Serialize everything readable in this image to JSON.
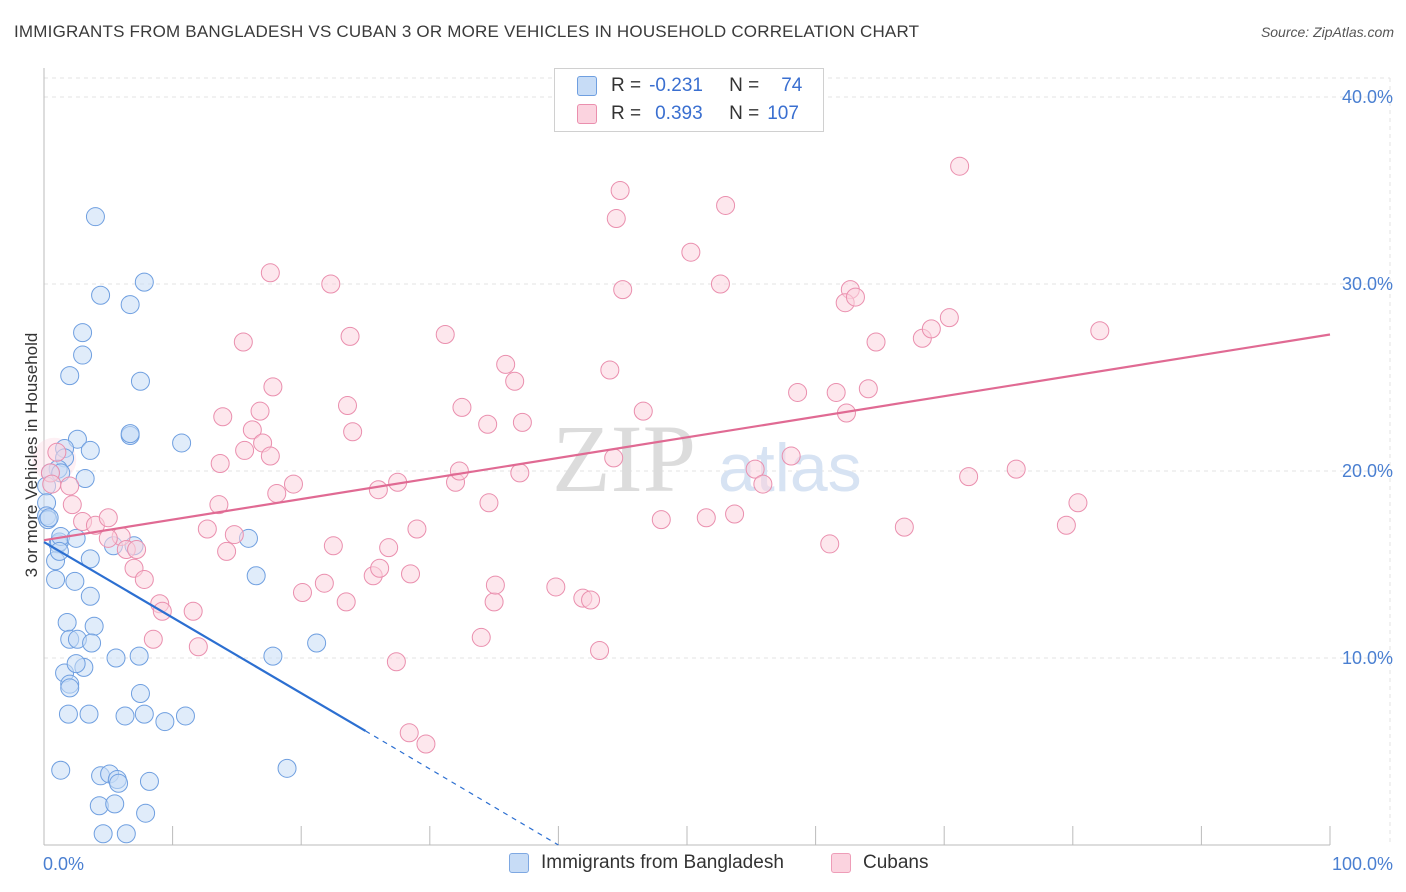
{
  "title": "IMMIGRANTS FROM BANGLADESH VS CUBAN 3 OR MORE VEHICLES IN HOUSEHOLD CORRELATION CHART",
  "source": "Source: ZipAtlas.com",
  "watermark": {
    "zip": "ZIP",
    "atlas": "atlas"
  },
  "legend": {
    "rows": [
      {
        "r_label": "R =",
        "r_value": "-0.231",
        "n_label": "N =",
        "n_value": "74",
        "color": "#a9c8f0",
        "border": "#6f9fe0"
      },
      {
        "r_label": "R =",
        "r_value": "0.393",
        "n_label": "N =",
        "n_value": "107",
        "color": "#f7bfd0",
        "border": "#ea8fae"
      }
    ]
  },
  "bottom_legend": {
    "items": [
      {
        "label": "Immigrants from Bangladesh",
        "color": "#c7dcf6",
        "border": "#7ea8e2"
      },
      {
        "label": "Cubans",
        "color": "#fbd3df",
        "border": "#ee9db8"
      }
    ]
  },
  "chart_data": {
    "type": "scatter",
    "title": "IMMIGRANTS FROM BANGLADESH VS CUBAN 3 OR MORE VEHICLES IN HOUSEHOLD CORRELATION CHART",
    "xlabel": "",
    "ylabel": "3 or more Vehicles in Household",
    "xlim": [
      0,
      100
    ],
    "ylim": [
      0,
      40
    ],
    "x_ticks": [
      0,
      100
    ],
    "x_tick_labels": [
      "0.0%",
      "100.0%"
    ],
    "y_ticks": [
      10,
      20,
      30,
      40
    ],
    "y_tick_labels": [
      "10.0%",
      "20.0%",
      "30.0%",
      "40.0%"
    ],
    "grid": true,
    "legend_position": "top-center",
    "series": [
      {
        "name": "Immigrants from Bangladesh",
        "color": "#6f9fe0",
        "fill": "#c7dcf6",
        "trend": {
          "x": [
            0,
            25
          ],
          "y": [
            16.2,
            6.1
          ],
          "dashed_to": [
            40,
            0.0
          ],
          "color": "#2c6fd1"
        },
        "points": [
          [
            4,
            33.6
          ],
          [
            4.4,
            29.4
          ],
          [
            6.7,
            28.9
          ],
          [
            7.8,
            30.1
          ],
          [
            3,
            27.4
          ],
          [
            3,
            26.2
          ],
          [
            2,
            25.1
          ],
          [
            7.5,
            24.8
          ],
          [
            10.7,
            21.5
          ],
          [
            6.7,
            21.9
          ],
          [
            6.7,
            22
          ],
          [
            2.6,
            21.7
          ],
          [
            1.6,
            21.2
          ],
          [
            1.6,
            20.7
          ],
          [
            3.6,
            21.1
          ],
          [
            1.1,
            20.1
          ],
          [
            0.5,
            19.9
          ],
          [
            1.3,
            19.9
          ],
          [
            0.2,
            19.2
          ],
          [
            0.2,
            18.3
          ],
          [
            3.2,
            19.6
          ],
          [
            0.2,
            17.6
          ],
          [
            0.3,
            17.4
          ],
          [
            0.4,
            17.5
          ],
          [
            1.1,
            16.1
          ],
          [
            1.2,
            16.2
          ],
          [
            1.3,
            16.5
          ],
          [
            2.5,
            16.4
          ],
          [
            5.4,
            16
          ],
          [
            7,
            16
          ],
          [
            0.9,
            15.2
          ],
          [
            1.2,
            15.7
          ],
          [
            3.6,
            15.3
          ],
          [
            15.9,
            16.4
          ],
          [
            0.9,
            14.2
          ],
          [
            2.4,
            14.1
          ],
          [
            3.6,
            13.3
          ],
          [
            16.5,
            14.4
          ],
          [
            1.8,
            11.9
          ],
          [
            3.9,
            11.7
          ],
          [
            2,
            11
          ],
          [
            2.6,
            11
          ],
          [
            3.7,
            10.8
          ],
          [
            7.4,
            10.1
          ],
          [
            1.6,
            9.2
          ],
          [
            3.1,
            9.5
          ],
          [
            2.5,
            9.7
          ],
          [
            5.6,
            10
          ],
          [
            2,
            8.6
          ],
          [
            2,
            8.4
          ],
          [
            17.8,
            10.1
          ],
          [
            21.2,
            10.8
          ],
          [
            7.5,
            8.1
          ],
          [
            1.9,
            7
          ],
          [
            3.5,
            7
          ],
          [
            6.3,
            6.9
          ],
          [
            7.8,
            7
          ],
          [
            9.4,
            6.6
          ],
          [
            11,
            6.9
          ],
          [
            1.3,
            4
          ],
          [
            4.4,
            3.7
          ],
          [
            5.1,
            3.8
          ],
          [
            5.7,
            3.5
          ],
          [
            8.2,
            3.4
          ],
          [
            18.9,
            4.1
          ],
          [
            4.3,
            2.1
          ],
          [
            5.5,
            2.2
          ],
          [
            7.9,
            1.7
          ],
          [
            5.8,
            3.3
          ],
          [
            4.6,
            0.6
          ],
          [
            6.4,
            0.6
          ]
        ]
      },
      {
        "name": "Cubans",
        "color": "#ea8fae",
        "fill": "#fbd3df",
        "trend": {
          "x": [
            0,
            100
          ],
          "y": [
            16.3,
            27.3
          ],
          "color": "#e06a93"
        },
        "points": [
          [
            1,
            21
          ],
          [
            0.5,
            19.9
          ],
          [
            0.6,
            19.3
          ],
          [
            2,
            19.2
          ],
          [
            2.2,
            18.2
          ],
          [
            3,
            17.3
          ],
          [
            4,
            17.1
          ],
          [
            5,
            17.5
          ],
          [
            6,
            16.5
          ],
          [
            5,
            16.4
          ],
          [
            6.4,
            15.8
          ],
          [
            7.2,
            15.8
          ],
          [
            7,
            14.8
          ],
          [
            7.8,
            14.2
          ],
          [
            9,
            12.9
          ],
          [
            9.2,
            12.5
          ],
          [
            8.5,
            11
          ],
          [
            11.6,
            12.5
          ],
          [
            12,
            10.6
          ],
          [
            12.7,
            16.9
          ],
          [
            13.6,
            18.2
          ],
          [
            14.2,
            15.7
          ],
          [
            14.8,
            16.6
          ],
          [
            13.7,
            20.4
          ],
          [
            15.6,
            21.1
          ],
          [
            13.9,
            22.9
          ],
          [
            16.2,
            22.2
          ],
          [
            16.8,
            23.2
          ],
          [
            15.5,
            26.9
          ],
          [
            17.8,
            24.5
          ],
          [
            17,
            21.5
          ],
          [
            17.6,
            20.8
          ],
          [
            18.1,
            18.8
          ],
          [
            19.4,
            19.3
          ],
          [
            17.6,
            30.6
          ],
          [
            22.3,
            30
          ],
          [
            23.8,
            27.2
          ],
          [
            24,
            22.1
          ],
          [
            23.6,
            23.5
          ],
          [
            26,
            19
          ],
          [
            22.5,
            16
          ],
          [
            21.8,
            14
          ],
          [
            20.1,
            13.5
          ],
          [
            23.5,
            13
          ],
          [
            25.6,
            14.4
          ],
          [
            26.1,
            14.8
          ],
          [
            26.8,
            15.9
          ],
          [
            27.5,
            19.4
          ],
          [
            28.5,
            14.5
          ],
          [
            29,
            16.9
          ],
          [
            27.4,
            9.8
          ],
          [
            28.4,
            6
          ],
          [
            29.7,
            5.4
          ],
          [
            31.2,
            27.3
          ],
          [
            32,
            19.4
          ],
          [
            32.3,
            20
          ],
          [
            32.5,
            23.4
          ],
          [
            35,
            13
          ],
          [
            34,
            11.1
          ],
          [
            35.9,
            25.7
          ],
          [
            34.5,
            22.5
          ],
          [
            36.6,
            24.8
          ],
          [
            34.6,
            18.3
          ],
          [
            35.1,
            13.9
          ],
          [
            37.2,
            22.6
          ],
          [
            37,
            19.9
          ],
          [
            39.8,
            13.8
          ],
          [
            41.9,
            13.2
          ],
          [
            42.5,
            13.1
          ],
          [
            43.2,
            10.4
          ],
          [
            44,
            25.4
          ],
          [
            44.3,
            20.7
          ],
          [
            44.5,
            33.5
          ],
          [
            44.8,
            35
          ],
          [
            45,
            29.7
          ],
          [
            46.6,
            23.2
          ],
          [
            48,
            17.4
          ],
          [
            50.3,
            31.7
          ],
          [
            51.5,
            17.5
          ],
          [
            52.6,
            30
          ],
          [
            53,
            34.2
          ],
          [
            53.7,
            17.7
          ],
          [
            55.3,
            20.1
          ],
          [
            55.9,
            19.3
          ],
          [
            58.1,
            20.8
          ],
          [
            58.6,
            24.2
          ],
          [
            61.1,
            16.1
          ],
          [
            61.6,
            24.2
          ],
          [
            62.7,
            29.7
          ],
          [
            62.3,
            29
          ],
          [
            62.4,
            23.1
          ],
          [
            63.1,
            29.3
          ],
          [
            64.1,
            24.4
          ],
          [
            66.9,
            17
          ],
          [
            68.3,
            27.1
          ],
          [
            69,
            27.6
          ],
          [
            70.4,
            28.2
          ],
          [
            71.9,
            19.7
          ],
          [
            71.2,
            36.3
          ],
          [
            75.6,
            20.1
          ],
          [
            79.5,
            17.1
          ],
          [
            80.4,
            18.3
          ],
          [
            82.1,
            27.5
          ],
          [
            64.7,
            26.9
          ]
        ]
      }
    ]
  }
}
